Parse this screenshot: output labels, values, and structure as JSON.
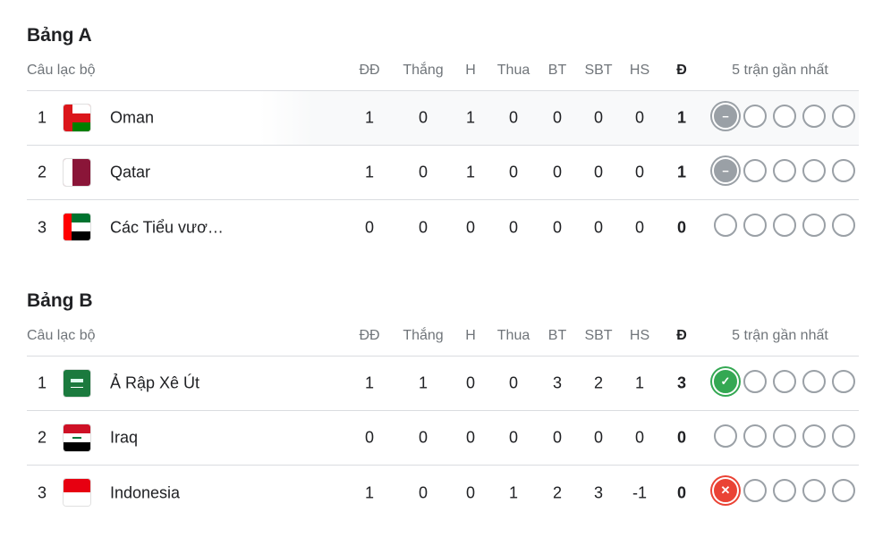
{
  "columns": {
    "club": "Câu lạc bộ",
    "played": "ĐĐ",
    "won": "Thắng",
    "drawn": "H",
    "lost": "Thua",
    "gf": "BT",
    "ga": "SBT",
    "gd": "HS",
    "pts": "Đ",
    "form": "5 trận gần nhất"
  },
  "colors": {
    "win": "#34a853",
    "draw": "#9aa0a6",
    "loss": "#ea4335"
  },
  "groups": [
    {
      "title": "Bảng A",
      "rows": [
        {
          "rank": "1",
          "team": "Oman",
          "flag": "oman",
          "played": "1",
          "won": "0",
          "drawn": "1",
          "lost": "0",
          "gf": "0",
          "ga": "0",
          "gd": "0",
          "pts": "1",
          "form": [
            "D",
            "",
            "",
            "",
            ""
          ],
          "highlighted": true
        },
        {
          "rank": "2",
          "team": "Qatar",
          "flag": "qatar",
          "played": "1",
          "won": "0",
          "drawn": "1",
          "lost": "0",
          "gf": "0",
          "ga": "0",
          "gd": "0",
          "pts": "1",
          "form": [
            "D",
            "",
            "",
            "",
            ""
          ]
        },
        {
          "rank": "3",
          "team": "Các Tiểu vươ…",
          "flag": "uae",
          "played": "0",
          "won": "0",
          "drawn": "0",
          "lost": "0",
          "gf": "0",
          "ga": "0",
          "gd": "0",
          "pts": "0",
          "form": [
            "",
            "",
            "",
            "",
            ""
          ]
        }
      ]
    },
    {
      "title": "Bảng B",
      "rows": [
        {
          "rank": "1",
          "team": "Ả Rập Xê Út",
          "flag": "saudi",
          "played": "1",
          "won": "1",
          "drawn": "0",
          "lost": "0",
          "gf": "3",
          "ga": "2",
          "gd": "1",
          "pts": "3",
          "form": [
            "W",
            "",
            "",
            "",
            ""
          ]
        },
        {
          "rank": "2",
          "team": "Iraq",
          "flag": "iraq",
          "played": "0",
          "won": "0",
          "drawn": "0",
          "lost": "0",
          "gf": "0",
          "ga": "0",
          "gd": "0",
          "pts": "0",
          "form": [
            "",
            "",
            "",
            "",
            ""
          ]
        },
        {
          "rank": "3",
          "team": "Indonesia",
          "flag": "indonesia",
          "played": "1",
          "won": "0",
          "drawn": "0",
          "lost": "1",
          "gf": "2",
          "ga": "3",
          "gd": "-1",
          "pts": "0",
          "form": [
            "L",
            "",
            "",
            "",
            ""
          ]
        }
      ]
    }
  ]
}
